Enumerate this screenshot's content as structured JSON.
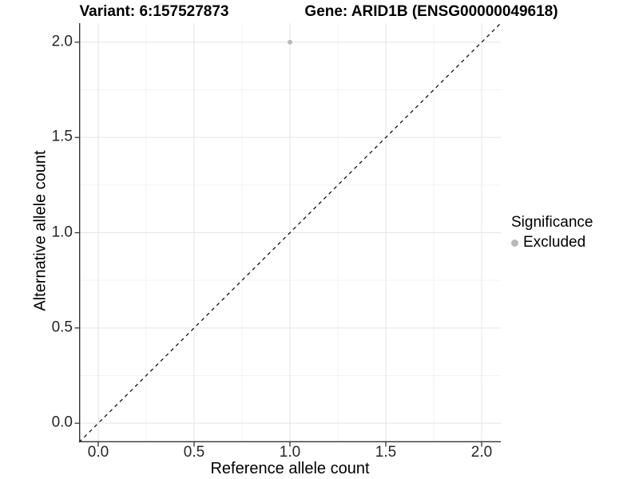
{
  "titles": {
    "variant": "Variant: 6:157527873",
    "gene": "Gene: ARID1B (ENSG00000049618)"
  },
  "chart_data": {
    "type": "scatter",
    "title_left": "Variant: 6:157527873",
    "title_right": "Gene: ARID1B (ENSG00000049618)",
    "x_axis": {
      "label": "Reference allele count",
      "lim": [
        -0.1,
        2.1
      ],
      "major_ticks": [
        0.0,
        0.5,
        1.0,
        1.5,
        2.0
      ],
      "tick_labels": [
        "0.0",
        "0.5",
        "1.0",
        "1.5",
        "2.0"
      ],
      "minor_ticks": [
        0.25,
        0.75,
        1.25,
        1.75
      ]
    },
    "y_axis": {
      "label": "Alternative allele count",
      "lim": [
        -0.1,
        2.1
      ],
      "major_ticks": [
        0.0,
        0.5,
        1.0,
        1.5,
        2.0
      ],
      "tick_labels": [
        "0.0",
        "0.5",
        "1.0",
        "1.5",
        "2.0"
      ],
      "minor_ticks": [
        0.25,
        0.75,
        1.25,
        1.75
      ]
    },
    "series": [
      {
        "name": "Excluded",
        "color": "#b9b9b9",
        "point_radius": 3,
        "points": [
          {
            "x": 1.0,
            "y": 2.0
          }
        ]
      }
    ],
    "reference_line": {
      "style": "dashed",
      "color": "#000000",
      "from": [
        -0.1,
        -0.1
      ],
      "to": [
        2.1,
        2.1
      ]
    },
    "legend": {
      "title": "Significance",
      "position": "right",
      "entries": [
        {
          "label": "Excluded",
          "color": "#b9b9b9"
        }
      ]
    },
    "grid": {
      "shown": true,
      "major_color": "#e4e4e4",
      "minor_color": "#f2f2f2"
    },
    "axis_line_color": "#333333"
  }
}
